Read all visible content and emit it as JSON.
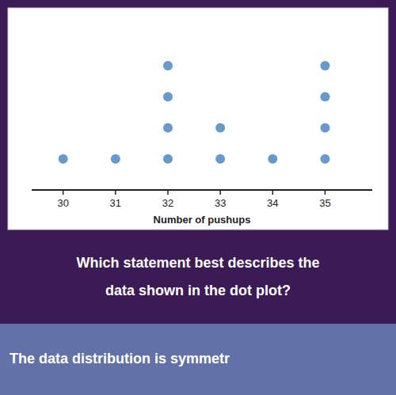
{
  "chart_data": {
    "type": "dot",
    "x": [
      30,
      31,
      32,
      33,
      34,
      35
    ],
    "values": [
      1,
      1,
      4,
      2,
      1,
      4
    ],
    "color": "#6699cc",
    "xlabel": "Number of pushups",
    "xlim": [
      29.4,
      35.9
    ],
    "xticks": [
      30,
      31,
      32,
      33,
      34,
      35
    ],
    "ylim": [
      0,
      5.5
    ],
    "tick_labels": "x",
    "grid": false,
    "annotations": [
      "Which statement best describes the",
      "data shown in the dot plot?",
      "The data distribution is symmetr"
    ]
  }
}
